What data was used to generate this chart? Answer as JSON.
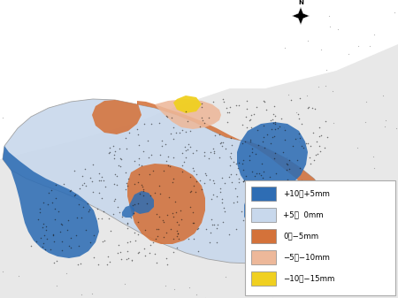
{
  "legend_items": [
    {
      "label": "+10～+5mm",
      "color": "#2E6DB4"
    },
    {
      "label": "+5～  0mm",
      "color": "#C8D8EC"
    },
    {
      "label": "0～−5mm",
      "color": "#D4723A"
    },
    {
      "label": "−5～−10mm",
      "color": "#EDB89A"
    },
    {
      "label": "−10～−15mm",
      "color": "#F0D020"
    }
  ],
  "bg_color": "#ffffff",
  "outer_bg": "#E0E0E0"
}
